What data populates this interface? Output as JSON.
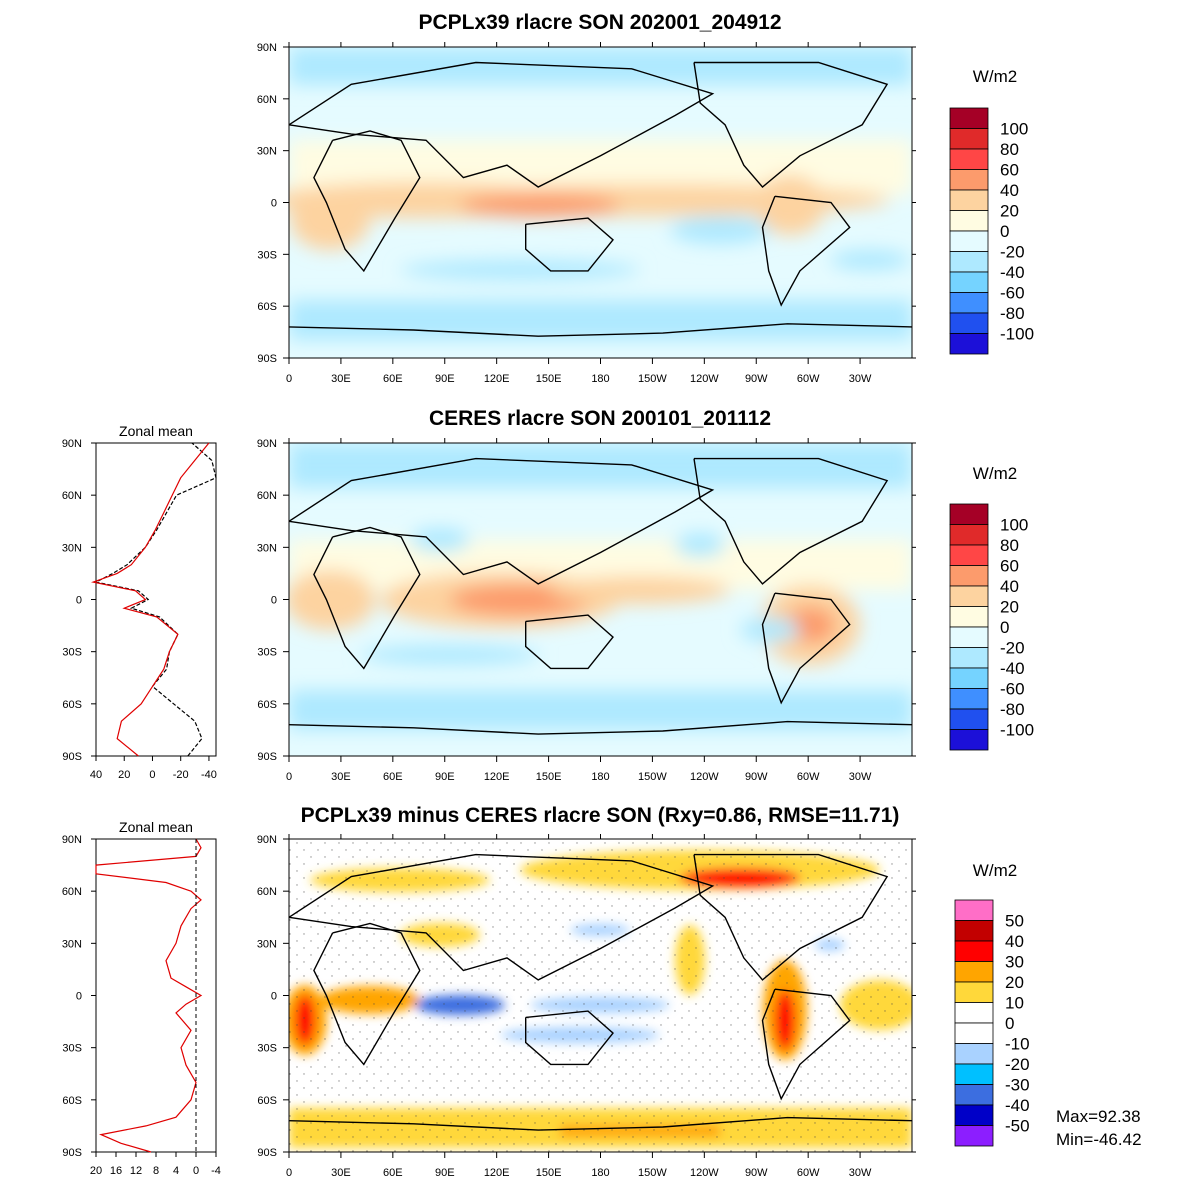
{
  "panels": [
    {
      "id": "model",
      "title": "PCPLx39 rlacre SON 202001_204912",
      "unit": "W/m2",
      "levels": [
        "100",
        "80",
        "60",
        "40",
        "20",
        "0",
        "-20",
        "-40",
        "-60",
        "-80",
        "-100"
      ],
      "colors": [
        "#a50026",
        "#e02a2a",
        "#ff4646",
        "#fc9b6c",
        "#fdd3a0",
        "#fffce2",
        "#e5fbff",
        "#aee9ff",
        "#75d3ff",
        "#3f8fff",
        "#2050ef",
        "#1c10d8"
      ]
    },
    {
      "id": "obs",
      "title": "CERES rlacre SON 200101_201112",
      "unit": "W/m2",
      "levels": [
        "100",
        "80",
        "60",
        "40",
        "20",
        "0",
        "-20",
        "-40",
        "-60",
        "-80",
        "-100"
      ],
      "colors": [
        "#a50026",
        "#e02a2a",
        "#ff4646",
        "#fc9b6c",
        "#fdd3a0",
        "#fffce2",
        "#e5fbff",
        "#aee9ff",
        "#75d3ff",
        "#3f8fff",
        "#2050ef",
        "#1c10d8"
      ],
      "zonal_mean": {
        "title": "Zonal mean",
        "xticks": [
          "40",
          "20",
          "0",
          "-20",
          "-40"
        ],
        "xlim": [
          40,
          -45
        ],
        "lat": [
          -90,
          -80,
          -70,
          -60,
          -50,
          -40,
          -30,
          -20,
          -10,
          -5,
          0,
          5,
          10,
          15,
          20,
          30,
          40,
          50,
          60,
          70,
          80,
          90
        ],
        "model": [
          10,
          25,
          22,
          8,
          0,
          -8,
          -12,
          -18,
          -3,
          20,
          5,
          12,
          42,
          25,
          15,
          5,
          -2,
          -8,
          -14,
          -20,
          -30,
          -40
        ],
        "obs": [
          -25,
          -35,
          -30,
          -15,
          0,
          -10,
          -12,
          -18,
          -5,
          15,
          3,
          10,
          40,
          28,
          18,
          5,
          -3,
          -10,
          -17,
          -45,
          -42,
          -28
        ]
      }
    },
    {
      "id": "diff",
      "title": "PCPLx39 minus CERES rlacre SON (Rxy=0.86, RMSE=11.71)",
      "unit": "W/m2",
      "levels": [
        "50",
        "40",
        "30",
        "20",
        "10",
        "0",
        "-10",
        "-20",
        "-30",
        "-40",
        "-50"
      ],
      "colors": [
        "#ff6ec7",
        "#c20000",
        "#ff0000",
        "#ffa500",
        "#ffd83a",
        "#ffffff",
        "#ffffff",
        "#a9d2ff",
        "#00c0ff",
        "#3c6ee0",
        "#0000c8",
        "#8c1eff"
      ],
      "stats": {
        "max": "Max=92.38",
        "min": "Min=-46.42"
      },
      "zonal_mean": {
        "title": "Zonal mean",
        "xticks": [
          "20",
          "16",
          "12",
          "8",
          "4",
          "0",
          "-4"
        ],
        "xlim": [
          20,
          -4
        ],
        "lat": [
          -90,
          -85,
          -80,
          -75,
          -70,
          -60,
          -50,
          -40,
          -30,
          -20,
          -10,
          -5,
          0,
          5,
          10,
          20,
          30,
          40,
          50,
          55,
          60,
          65,
          70,
          75,
          80,
          85,
          90
        ],
        "diff": [
          9,
          15,
          19,
          10,
          4,
          1,
          0,
          2,
          3,
          1,
          4,
          2,
          -1,
          2,
          5,
          6,
          4,
          3,
          1,
          -1,
          1,
          6,
          20,
          20,
          0,
          -1,
          0
        ]
      }
    }
  ],
  "map_axes": {
    "lat_ticks": [
      "90N",
      "60N",
      "30N",
      "0",
      "30S",
      "60S",
      "90S"
    ],
    "lon_ticks": [
      "0",
      "30E",
      "60E",
      "90E",
      "120E",
      "150E",
      "180",
      "150W",
      "120W",
      "90W",
      "60W",
      "30W"
    ]
  }
}
